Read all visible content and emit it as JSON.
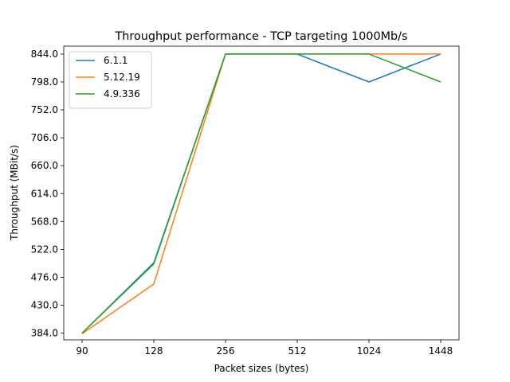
{
  "chart_data": {
    "type": "line",
    "title": "Throughput performance - TCP targeting 1000Mb/s",
    "xlabel": "Packet sizes (bytes)",
    "ylabel": "Throughput (MBit/s)",
    "categories": [
      "90",
      "128",
      "256",
      "512",
      "1024",
      "1448"
    ],
    "y_ticks": [
      "384.0",
      "430.0",
      "476.0",
      "522.0",
      "568.0",
      "614.0",
      "660.0",
      "706.0",
      "752.0",
      "798.0",
      "844.0"
    ],
    "ylim": [
      373,
      857
    ],
    "grid": false,
    "legend_position": "top-left",
    "series": [
      {
        "name": "6.1.1",
        "color": "#1f77b4",
        "values": [
          384,
          500,
          844,
          844,
          798,
          844
        ]
      },
      {
        "name": "5.12.19",
        "color": "#ff7f0e",
        "values": [
          383,
          465,
          844,
          844,
          844,
          844
        ]
      },
      {
        "name": "4.9.336",
        "color": "#2ca02c",
        "values": [
          384,
          498,
          844,
          844,
          844,
          798
        ]
      }
    ]
  }
}
